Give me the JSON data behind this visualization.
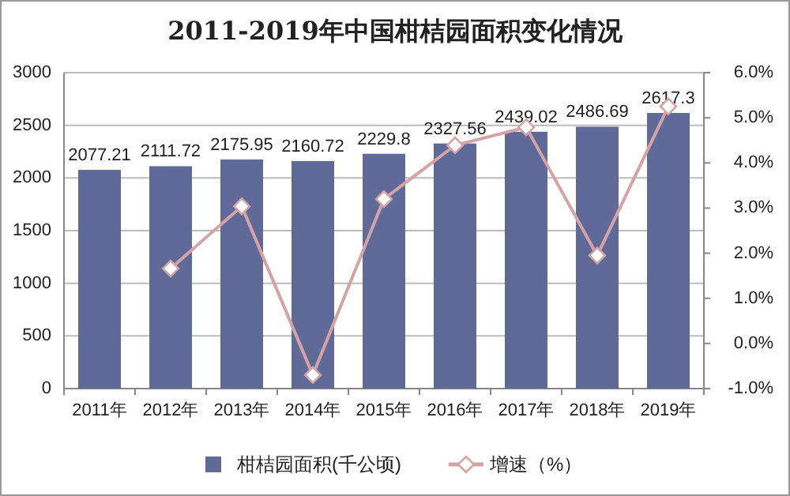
{
  "chart_data": {
    "type": "bar",
    "title": "2011-2019年中国柑桔园面积变化情况",
    "categories": [
      "2011年",
      "2012年",
      "2013年",
      "2014年",
      "2015年",
      "2016年",
      "2017年",
      "2018年",
      "2019年"
    ],
    "series": [
      {
        "name": "柑桔园面积(千公顷)",
        "type": "bar",
        "color": "#5f6a98",
        "values": [
          2077.21,
          2111.72,
          2175.95,
          2160.72,
          2229.8,
          2327.56,
          2439.02,
          2486.69,
          2617.3
        ],
        "value_labels": [
          "2077.21",
          "2111.72",
          "2175.95",
          "2160.72",
          "2229.8",
          "2327.56",
          "2439.02",
          "2486.69",
          "2617.3"
        ]
      },
      {
        "name": "增速（%）",
        "type": "line",
        "axis": "y2",
        "color": "#d4a3a6",
        "marker": "diamond",
        "values": [
          null,
          1.66,
          3.04,
          -0.7,
          3.2,
          4.39,
          4.79,
          1.95,
          5.25
        ]
      }
    ],
    "ylim": [
      0,
      3000
    ],
    "yticks": [
      0,
      500,
      1000,
      1500,
      2000,
      2500,
      3000
    ],
    "y2lim": [
      -1,
      6
    ],
    "y2ticks": [
      {
        "value": -1,
        "label": "-1.0%"
      },
      {
        "value": 0,
        "label": "0.0%"
      },
      {
        "value": 1,
        "label": "1.0%"
      },
      {
        "value": 2,
        "label": "2.0%"
      },
      {
        "value": 3,
        "label": "3.0%"
      },
      {
        "value": 4,
        "label": "4.0%"
      },
      {
        "value": 5,
        "label": "5.0%"
      },
      {
        "value": 6,
        "label": "6.0%"
      }
    ],
    "grid": "y",
    "legend": "bottom"
  }
}
